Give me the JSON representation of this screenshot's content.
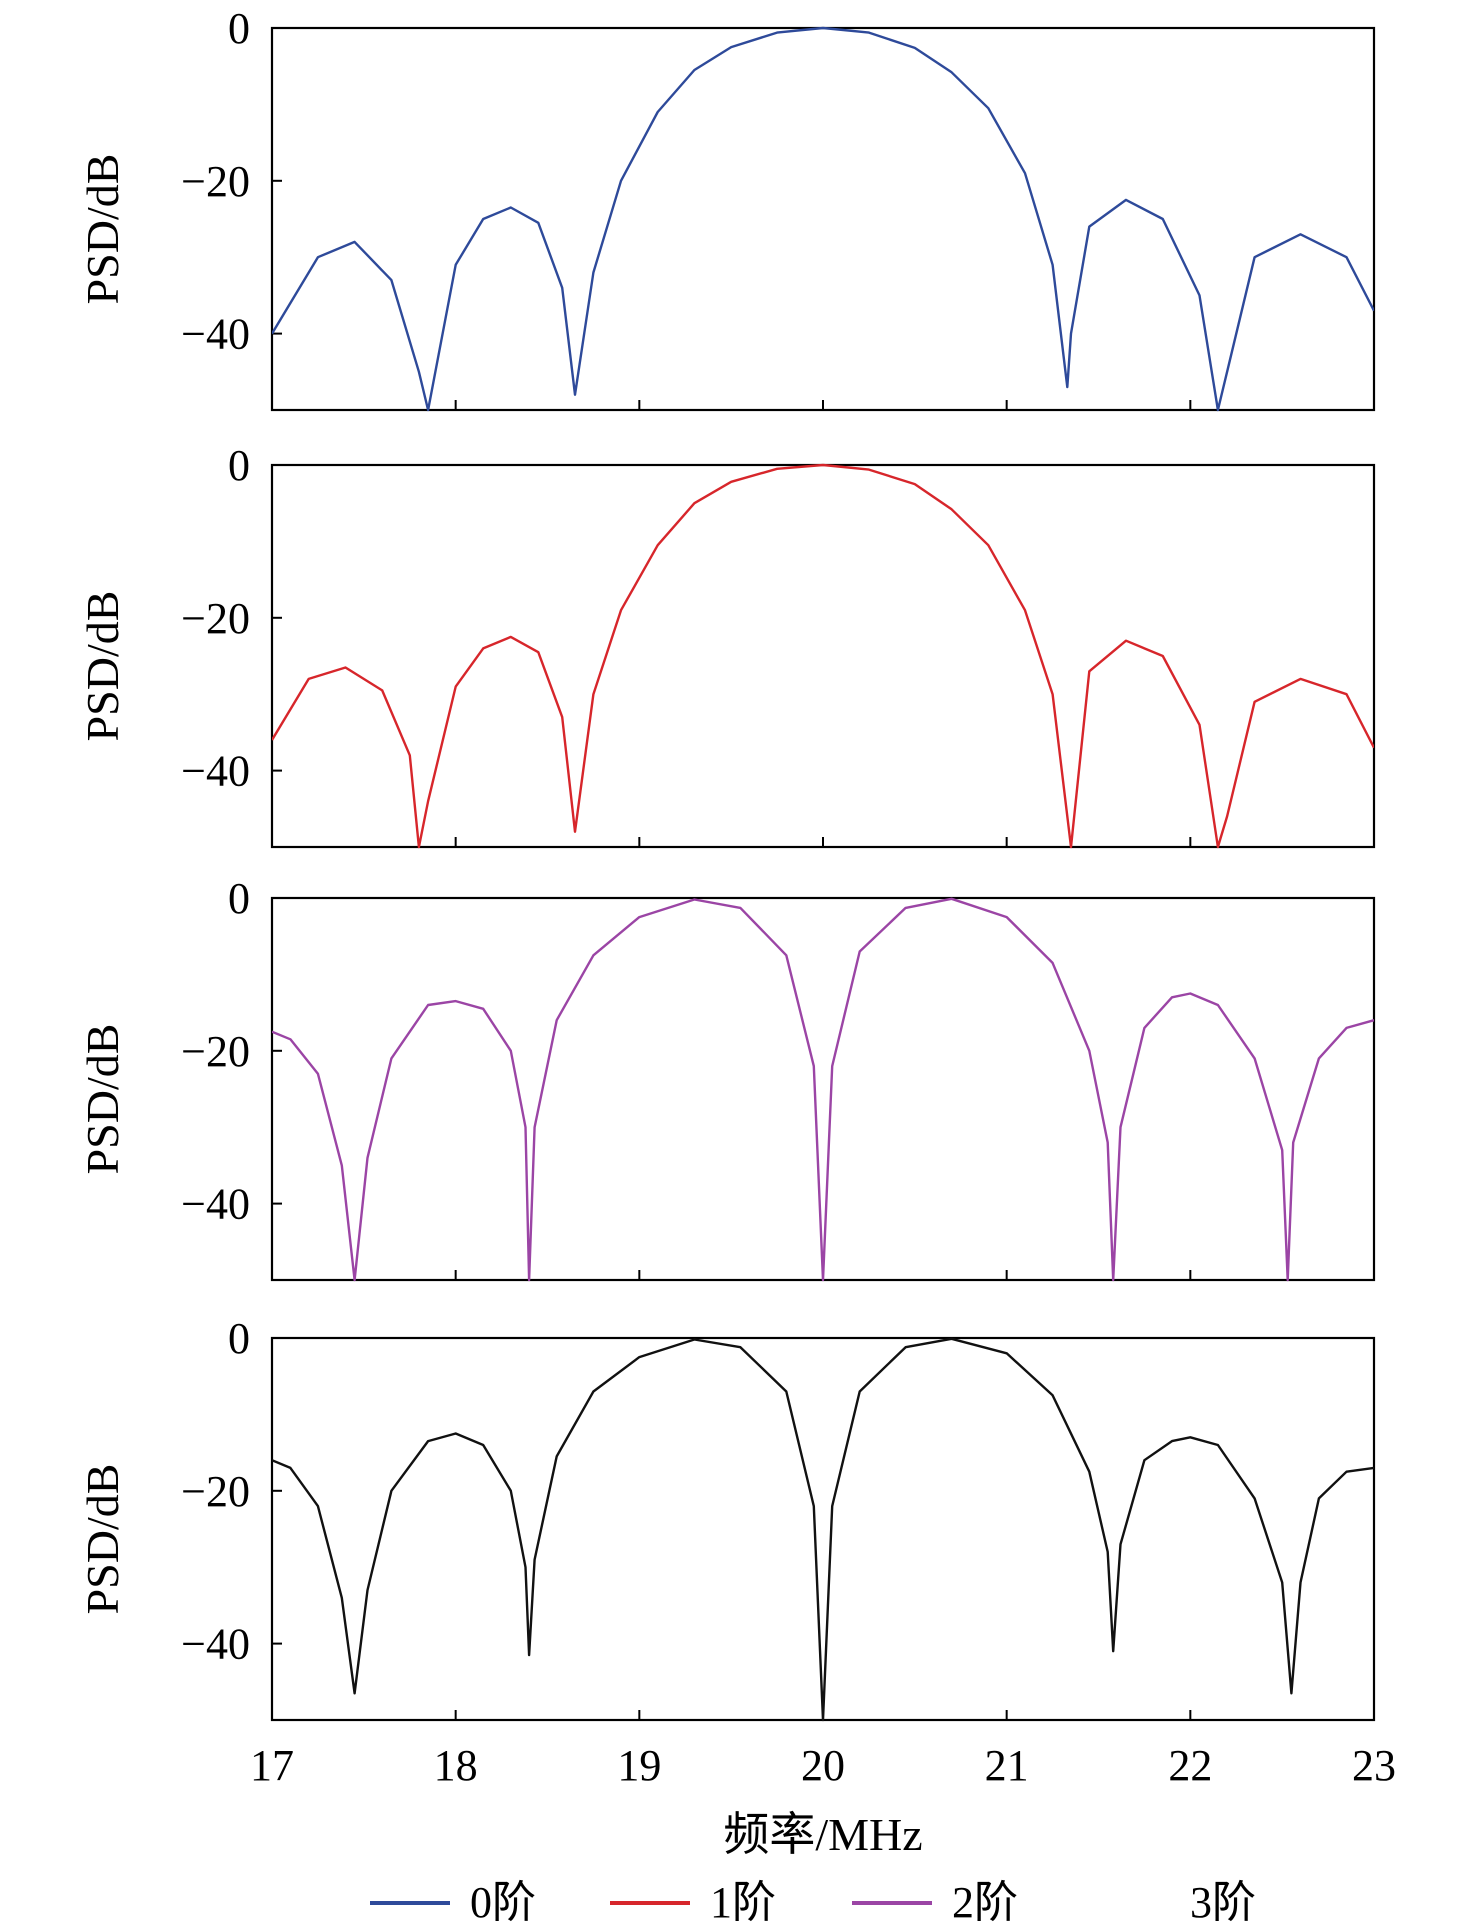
{
  "chart_data": [
    {
      "type": "line",
      "name": "0阶",
      "color": "#2E4A9A",
      "ylabel": "PSD/dB",
      "xlim": [
        17,
        23
      ],
      "ylim": [
        -50,
        0
      ],
      "yticks": [
        0,
        -20,
        -40
      ],
      "x": [
        17.0,
        17.25,
        17.45,
        17.65,
        17.8,
        17.85,
        18.0,
        18.15,
        18.3,
        18.45,
        18.58,
        18.65,
        18.75,
        18.9,
        19.1,
        19.3,
        19.5,
        19.75,
        20.0,
        20.25,
        20.5,
        20.7,
        20.9,
        21.1,
        21.25,
        21.33,
        21.35,
        21.45,
        21.65,
        21.85,
        22.05,
        22.15,
        22.2,
        22.35,
        22.6,
        22.85,
        23.0
      ],
      "values": [
        -40,
        -30,
        -28,
        -33,
        -45,
        -50,
        -31,
        -25,
        -23.5,
        -25.5,
        -34,
        -48,
        -32,
        -20,
        -11,
        -5.5,
        -2.5,
        -0.6,
        0,
        -0.6,
        -2.6,
        -5.8,
        -10.5,
        -19,
        -31,
        -47,
        -40,
        -26,
        -22.5,
        -25,
        -35,
        -50,
        -45,
        -30,
        -27,
        -30,
        -37
      ]
    },
    {
      "type": "line",
      "name": "1阶",
      "color": "#D7262B",
      "ylabel": "PSD/dB",
      "xlim": [
        17,
        23
      ],
      "ylim": [
        -50,
        0
      ],
      "yticks": [
        0,
        -20,
        -40
      ],
      "x": [
        17.0,
        17.2,
        17.4,
        17.6,
        17.75,
        17.8,
        17.85,
        18.0,
        18.15,
        18.3,
        18.45,
        18.58,
        18.65,
        18.75,
        18.9,
        19.1,
        19.3,
        19.5,
        19.75,
        20.0,
        20.25,
        20.5,
        20.7,
        20.9,
        21.1,
        21.25,
        21.35,
        21.45,
        21.65,
        21.85,
        22.05,
        22.15,
        22.2,
        22.35,
        22.6,
        22.85,
        23.0
      ],
      "values": [
        -36,
        -28,
        -26.5,
        -29.5,
        -38,
        -50,
        -44,
        -29,
        -24,
        -22.5,
        -24.5,
        -33,
        -48,
        -30,
        -19,
        -10.5,
        -5,
        -2.2,
        -0.5,
        0,
        -0.6,
        -2.5,
        -5.8,
        -10.5,
        -19,
        -30,
        -50,
        -27,
        -23,
        -25,
        -34,
        -50,
        -46,
        -31,
        -28,
        -30,
        -37
      ]
    },
    {
      "type": "line",
      "name": "2阶",
      "color": "#9B45A5",
      "ylabel": "PSD/dB",
      "xlim": [
        17,
        23
      ],
      "ylim": [
        -50,
        0
      ],
      "yticks": [
        0,
        -20,
        -40
      ],
      "x": [
        17.0,
        17.1,
        17.25,
        17.38,
        17.45,
        17.52,
        17.65,
        17.85,
        18.0,
        18.15,
        18.3,
        18.38,
        18.4,
        18.43,
        18.55,
        18.75,
        19.0,
        19.3,
        19.55,
        19.8,
        19.95,
        20.0,
        20.05,
        20.2,
        20.45,
        20.7,
        21.0,
        21.25,
        21.45,
        21.55,
        21.58,
        21.62,
        21.75,
        21.9,
        22.0,
        22.15,
        22.35,
        22.5,
        22.53,
        22.56,
        22.7,
        22.85,
        23.0
      ],
      "values": [
        -17.5,
        -18.5,
        -23,
        -35,
        -50,
        -34,
        -21,
        -14,
        -13.5,
        -14.5,
        -20,
        -30,
        -50,
        -30,
        -16,
        -7.5,
        -2.5,
        -0.2,
        -1.3,
        -7.5,
        -22,
        -50,
        -22,
        -7,
        -1.3,
        -0.1,
        -2.5,
        -8.5,
        -20,
        -32,
        -50,
        -30,
        -17,
        -13,
        -12.5,
        -14,
        -21,
        -33,
        -50,
        -32,
        -21,
        -17,
        -16
      ]
    },
    {
      "type": "line",
      "name": "3阶",
      "color": "#111111",
      "ylabel": "PSD/dB",
      "xlim": [
        17,
        23
      ],
      "ylim": [
        -50,
        0
      ],
      "yticks": [
        0,
        -20,
        -40
      ],
      "x": [
        17.0,
        17.1,
        17.25,
        17.38,
        17.45,
        17.52,
        17.65,
        17.85,
        18.0,
        18.15,
        18.3,
        18.38,
        18.4,
        18.43,
        18.55,
        18.75,
        19.0,
        19.3,
        19.55,
        19.8,
        19.95,
        20.0,
        20.05,
        20.2,
        20.45,
        20.7,
        21.0,
        21.25,
        21.45,
        21.55,
        21.58,
        21.62,
        21.75,
        21.9,
        22.0,
        22.15,
        22.35,
        22.5,
        22.55,
        22.6,
        22.7,
        22.85,
        23.0
      ],
      "values": [
        -16,
        -17,
        -22,
        -34,
        -46.5,
        -33,
        -20,
        -13.5,
        -12.5,
        -14,
        -20,
        -30,
        -41.5,
        -29,
        -15.5,
        -7,
        -2.5,
        -0.2,
        -1.2,
        -7,
        -22,
        -50,
        -22,
        -7,
        -1.2,
        -0.1,
        -2,
        -7.5,
        -17.5,
        -28,
        -41,
        -27,
        -16,
        -13.5,
        -13,
        -14,
        -21,
        -32,
        -46.5,
        -32,
        -21,
        -17.5,
        -17
      ]
    }
  ],
  "x_axis": {
    "title": "频率/MHz",
    "ticks": [
      17,
      18,
      19,
      20,
      21,
      22,
      23
    ]
  },
  "y_axis_title": "PSD/dB",
  "legend": [
    {
      "label": "0阶",
      "color": "#2E4A9A",
      "show_line": true
    },
    {
      "label": "1阶",
      "color": "#D7262B",
      "show_line": true
    },
    {
      "label": "2阶",
      "color": "#9B45A5",
      "show_line": true
    },
    {
      "label": "3阶",
      "color": "#111111",
      "show_line": false
    }
  ]
}
